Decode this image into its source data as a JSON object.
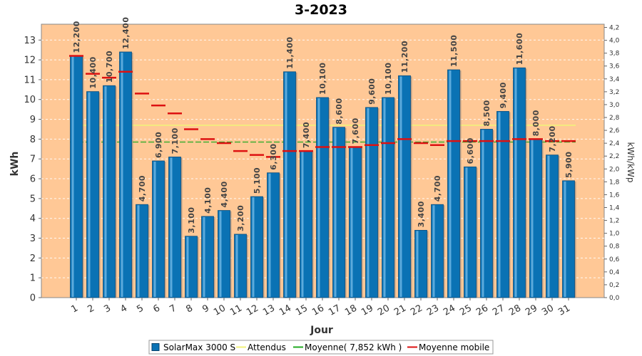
{
  "chart_data": {
    "type": "bar",
    "title": "3-2023",
    "xlabel": "Jour",
    "ylabel": "kWh",
    "y2label": "kWh/kWp",
    "ylim": [
      0,
      13.8
    ],
    "y2lim": [
      0,
      4.25
    ],
    "yticks": [
      "0",
      "1",
      "2",
      "3",
      "4",
      "5",
      "6",
      "7",
      "8",
      "9",
      "10",
      "11",
      "12",
      "13"
    ],
    "y2ticks": [
      "0,0",
      "0,2",
      "0,4",
      "0,6",
      "0,8",
      "1,0",
      "1,2",
      "1,4",
      "1,6",
      "1,8",
      "2,0",
      "2,2",
      "2,4",
      "2,6",
      "2,8",
      "3,0",
      "3,2",
      "3,4",
      "3,6",
      "3,8",
      "4,0",
      "4,2"
    ],
    "grid": true,
    "legend_position": "bottom",
    "categories": [
      "1",
      "2",
      "3",
      "4",
      "5",
      "6",
      "7",
      "8",
      "9",
      "10",
      "11",
      "12",
      "13",
      "14",
      "15",
      "16",
      "17",
      "18",
      "19",
      "20",
      "21",
      "22",
      "23",
      "24",
      "25",
      "26",
      "27",
      "28",
      "29",
      "30",
      "31"
    ],
    "series": [
      {
        "name": "SolarMax 3000 S",
        "kind": "bar",
        "color": "#0a72b4",
        "values": [
          12.2,
          10.4,
          10.7,
          12.4,
          4.7,
          6.9,
          7.1,
          3.1,
          4.1,
          4.4,
          3.2,
          5.1,
          6.3,
          11.4,
          7.4,
          10.1,
          8.6,
          7.6,
          9.6,
          10.1,
          11.2,
          3.4,
          4.7,
          11.5,
          6.6,
          8.5,
          9.4,
          11.6,
          8.0,
          7.2,
          5.9
        ],
        "labels": [
          "12,200",
          "10,400",
          "10,700",
          "12,400",
          "4,700",
          "6,900",
          "7,100",
          "3,100",
          "4,100",
          "4,400",
          "3,200",
          "5,100",
          "6,300",
          "11,400",
          "7,400",
          "10,100",
          "8,600",
          "7,600",
          "9,600",
          "10,100",
          "11,200",
          "3,400",
          "4,700",
          "11,500",
          "6,600",
          "8,500",
          "9,400",
          "11,600",
          "8,000",
          "7,200",
          "5,900"
        ]
      },
      {
        "name": "Attendus",
        "kind": "line",
        "color": "#f2f27a",
        "value": 8.7
      },
      {
        "name": "Moyenne( 7,852 kWh )",
        "kind": "line",
        "color": "#22aa22",
        "value": 7.852
      },
      {
        "name": "Moyenne mobile",
        "kind": "marker",
        "color": "#dd1111",
        "values": [
          12.2,
          11.3,
          11.1,
          11.4,
          10.3,
          9.7,
          9.3,
          8.5,
          8.0,
          7.8,
          7.4,
          7.2,
          7.1,
          7.4,
          7.4,
          7.6,
          7.6,
          7.6,
          7.7,
          7.8,
          8.0,
          7.8,
          7.7,
          7.9,
          7.9,
          7.9,
          7.9,
          8.0,
          8.0,
          7.9,
          7.9
        ]
      }
    ]
  }
}
